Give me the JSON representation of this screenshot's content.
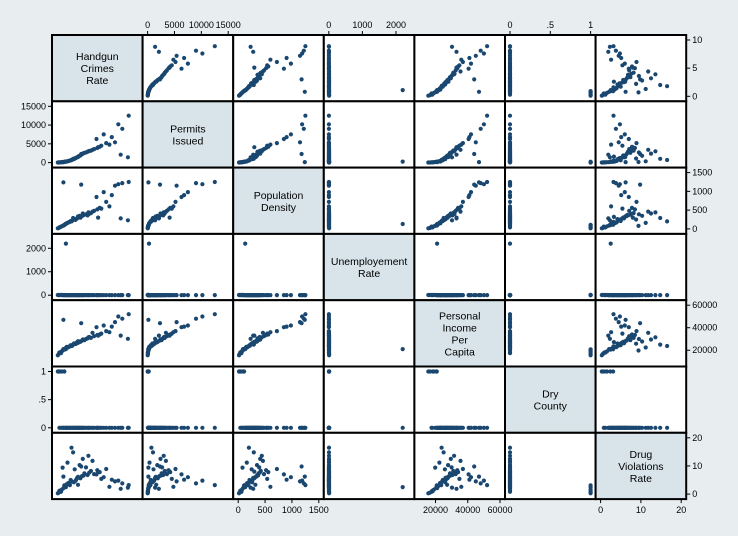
{
  "chart_data": {
    "type": "scatter",
    "variables": [
      {
        "label": [
          "Handgun",
          "Crimes",
          "Rate"
        ],
        "range": [
          0,
          10
        ],
        "ticks": [
          0,
          5,
          10
        ],
        "axis": [
          "right"
        ]
      },
      {
        "label": [
          "Permits",
          "Issued"
        ],
        "range": [
          0,
          15000
        ],
        "ticks": [
          0,
          5000,
          10000,
          15000
        ],
        "axis": [
          "top",
          "left"
        ]
      },
      {
        "label": [
          "Population",
          "Density"
        ],
        "range": [
          0,
          1500
        ],
        "ticks": [
          0,
          500,
          1000,
          1500
        ],
        "axis": [
          "right",
          "bottom"
        ]
      },
      {
        "label": [
          "Unemployement",
          "Rate"
        ],
        "range": [
          0,
          2400
        ],
        "ticks": [
          0,
          1000,
          2000
        ],
        "axis": [
          "top",
          "left"
        ]
      },
      {
        "label": [
          "Personal",
          "Income",
          "Per",
          "Capita"
        ],
        "range": [
          10000,
          60000
        ],
        "ticks": [
          20000,
          40000,
          60000
        ],
        "axis": [
          "right",
          "bottom"
        ]
      },
      {
        "label": [
          "Dry",
          "County"
        ],
        "range": [
          0,
          1
        ],
        "ticks": [
          0,
          0.5,
          1
        ],
        "axis": [
          "top",
          "left"
        ]
      },
      {
        "label": [
          "Drug",
          "Violations",
          "Rate"
        ],
        "range": [
          0,
          20
        ],
        "ticks": [
          0,
          10,
          20
        ],
        "axis": [
          "right",
          "bottom"
        ]
      }
    ],
    "tick_labels": {
      "0": [
        "0",
        "5",
        "10"
      ],
      "1": [
        "0",
        "5000",
        "10000",
        "15000"
      ],
      "2": [
        "0",
        "500",
        "1000",
        "1500"
      ],
      "3": [
        "0",
        "1000",
        "2000"
      ],
      "4": [
        "20000",
        "40000",
        "60000"
      ],
      "5": [
        "0",
        ".5",
        "1"
      ],
      "6": [
        "0",
        "10",
        "20"
      ]
    },
    "observations": [
      [
        0.8,
        120,
        90,
        4.6,
        21000,
        0,
        2.1
      ],
      [
        1.2,
        300,
        150,
        5.0,
        23000,
        0,
        3.5
      ],
      [
        2.1,
        900,
        260,
        5.8,
        26000,
        0,
        4.2
      ],
      [
        0.3,
        50,
        40,
        6.1,
        18000,
        0,
        1.2
      ],
      [
        1.7,
        600,
        210,
        4.2,
        24500,
        0,
        5.0
      ],
      [
        2.6,
        1500,
        330,
        5.5,
        28000,
        0,
        6.1
      ],
      [
        3.4,
        2600,
        380,
        6.3,
        29000,
        0,
        7.4
      ],
      [
        0.5,
        80,
        60,
        7.0,
        17500,
        0,
        0.8
      ],
      [
        1.0,
        250,
        120,
        5.2,
        21500,
        0,
        2.8
      ],
      [
        2.9,
        1900,
        300,
        4.8,
        27500,
        0,
        5.6
      ],
      [
        4.2,
        3200,
        420,
        5.9,
        31000,
        0,
        8.2
      ],
      [
        0.6,
        110,
        70,
        6.6,
        19000,
        1,
        1.6
      ],
      [
        1.4,
        420,
        170,
        5.4,
        22800,
        0,
        3.9
      ],
      [
        2.3,
        1200,
        240,
        6.0,
        25500,
        0,
        4.7
      ],
      [
        3.8,
        2900,
        360,
        4.9,
        30500,
        0,
        6.8
      ],
      [
        0.2,
        30,
        25,
        8.2,
        16500,
        1,
        0.5
      ],
      [
        1.9,
        800,
        220,
        5.1,
        24000,
        0,
        4.4
      ],
      [
        2.7,
        1700,
        310,
        5.7,
        27000,
        0,
        5.9
      ],
      [
        5.3,
        4200,
        560,
        4.5,
        34000,
        0,
        7.8
      ],
      [
        6.1,
        5200,
        720,
        4.1,
        37000,
        0,
        8.9
      ],
      [
        0.9,
        180,
        100,
        6.8,
        20500,
        1,
        2.4
      ],
      [
        1.6,
        520,
        190,
        5.3,
        23500,
        0,
        3.2
      ],
      [
        3.1,
        2200,
        340,
        5.0,
        28500,
        0,
        6.4
      ],
      [
        4.6,
        3600,
        480,
        4.7,
        32500,
        0,
        7.1
      ],
      [
        0.4,
        60,
        45,
        7.4,
        18200,
        1,
        1.0
      ],
      [
        1.1,
        280,
        140,
        5.9,
        22000,
        0,
        3.0
      ],
      [
        2.4,
        1300,
        270,
        5.6,
        26500,
        0,
        5.2
      ],
      [
        3.6,
        2700,
        390,
        5.2,
        30000,
        0,
        9.5
      ],
      [
        5.0,
        3900,
        520,
        4.3,
        33500,
        0,
        8.5
      ],
      [
        7.2,
        5400,
        1150,
        3.8,
        45000,
        0,
        4.5
      ],
      [
        8.1,
        9000,
        1220,
        3.5,
        48000,
        0,
        3.8
      ],
      [
        8.9,
        12500,
        1250,
        3.6,
        52000,
        0,
        3.2
      ],
      [
        7.6,
        10200,
        1190,
        3.9,
        50000,
        0,
        4.8
      ],
      [
        5.8,
        7500,
        980,
        4.0,
        42000,
        0,
        6.0
      ],
      [
        4.9,
        6300,
        850,
        4.4,
        40500,
        0,
        7.0
      ],
      [
        3.2,
        2400,
        410,
        5.5,
        29500,
        0,
        12.5
      ],
      [
        2.0,
        1000,
        290,
        6.2,
        25000,
        0,
        14.8
      ],
      [
        1.3,
        350,
        160,
        5.8,
        22400,
        0,
        11.2
      ],
      [
        0.7,
        150,
        80,
        6.4,
        19800,
        0,
        9.4
      ],
      [
        2.8,
        1800,
        350,
        5.0,
        27800,
        0,
        10.3
      ],
      [
        3.9,
        3000,
        440,
        4.6,
        31500,
        0,
        13.6
      ],
      [
        6.5,
        4800,
        600,
        4.2,
        36000,
        0,
        2.6
      ],
      [
        7.9,
        2100,
        280,
        5.1,
        33000,
        0,
        1.9
      ],
      [
        8.8,
        1400,
        230,
        5.3,
        30200,
        0,
        2.3
      ],
      [
        1.8,
        700,
        200,
        5.6,
        23800,
        0,
        16.5
      ],
      [
        4.4,
        3400,
        460,
        4.8,
        35500,
        0,
        11.8
      ],
      [
        0.1,
        20,
        15,
        9.0,
        15500,
        1,
        0.3
      ],
      [
        2.2,
        1100,
        250,
        5.4,
        25800,
        0,
        8.8
      ],
      [
        3.3,
        2500,
        370,
        5.1,
        29200,
        0,
        6.6
      ],
      [
        5.5,
        4500,
        540,
        4.4,
        34800,
        0,
        5.4
      ],
      [
        1.5,
        480,
        180,
        5.7,
        23200,
        0,
        4.0
      ],
      [
        2.5,
        1400,
        280,
        5.3,
        26200,
        0,
        5.8
      ],
      [
        0.9,
        200,
        110,
        6.3,
        20800,
        1,
        3.1
      ],
      [
        4.0,
        3100,
        400,
        4.9,
        31800,
        0,
        7.6
      ],
      [
        6.8,
        6800,
        900,
        4.1,
        41000,
        0,
        5.1
      ],
      [
        3.0,
        2300,
        1180,
        4.6,
        44000,
        0,
        9.8
      ],
      [
        1.1,
        260,
        130,
        2200,
        21000,
        0,
        2.5
      ],
      [
        0.8,
        140,
        1240,
        4.5,
        47000,
        0,
        6.2
      ],
      [
        5.1,
        4100,
        300,
        4.7,
        33000,
        0,
        8.0
      ],
      [
        2.6,
        1600,
        320,
        5.2,
        27200,
        0,
        3.3
      ]
    ]
  }
}
